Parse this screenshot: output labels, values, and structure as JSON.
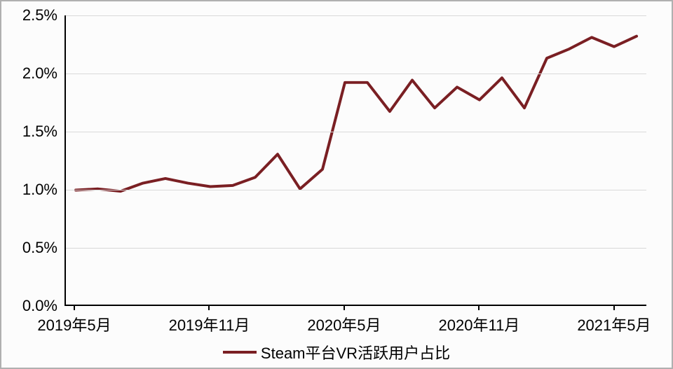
{
  "chart": {
    "type": "line",
    "background_color": "#fcfcfc",
    "border_color": "#b0b0b0",
    "axis_color": "#000000",
    "grid_color": "#d9d9d9",
    "label_color": "#000000",
    "label_fontsize": 22,
    "ylim": [
      0.0,
      2.5
    ],
    "ytick_step": 0.5,
    "y_ticks": [
      {
        "v": 0.0,
        "label": "0.0%"
      },
      {
        "v": 0.5,
        "label": "0.5%"
      },
      {
        "v": 1.0,
        "label": "1.0%"
      },
      {
        "v": 1.5,
        "label": "1.5%"
      },
      {
        "v": 2.0,
        "label": "2.0%"
      },
      {
        "v": 2.5,
        "label": "2.5%"
      }
    ],
    "x_ticks": [
      {
        "i": 0,
        "label": "2019年5月"
      },
      {
        "i": 6,
        "label": "2019年11月"
      },
      {
        "i": 12,
        "label": "2020年5月"
      },
      {
        "i": 18,
        "label": "2020年11月"
      },
      {
        "i": 24,
        "label": "2021年5月"
      }
    ],
    "series": {
      "name": "Steam平台VR活跃用户占比",
      "color": "#7a1f23",
      "line_width": 4,
      "values": [
        0.99,
        1.0,
        0.98,
        1.05,
        1.09,
        1.05,
        1.02,
        1.03,
        1.1,
        1.3,
        1.0,
        1.17,
        1.92,
        1.92,
        1.67,
        1.94,
        1.7,
        1.88,
        1.77,
        1.96,
        1.7,
        2.13,
        2.21,
        2.31,
        2.23,
        2.32
      ]
    },
    "legend": {
      "label": "Steam平台VR活跃用户占比"
    }
  }
}
